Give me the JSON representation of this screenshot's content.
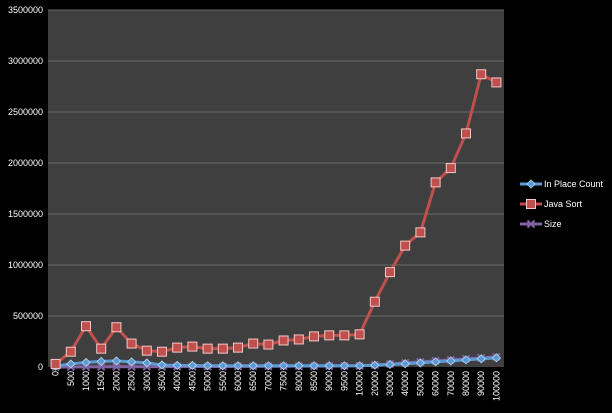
{
  "chart_data": {
    "type": "line",
    "categories": [
      "0",
      "500",
      "1000",
      "1500",
      "2000",
      "2500",
      "3000",
      "3500",
      "4000",
      "4500",
      "5000",
      "5500",
      "6000",
      "6500",
      "7000",
      "7500",
      "8000",
      "8500",
      "9000",
      "9500",
      "10000",
      "20000",
      "30000",
      "40000",
      "50000",
      "60000",
      "70000",
      "80000",
      "90000",
      "100000"
    ],
    "y_ticks": [
      "0",
      "500000",
      "1000000",
      "1500000",
      "2000000",
      "2500000",
      "3000000",
      "3500000"
    ],
    "ylim": [
      0,
      3500000
    ],
    "grid": true,
    "legend_position": "right",
    "series": [
      {
        "name": "In Place Count",
        "color": "#5b9bd5",
        "marker": "diamond",
        "values": [
          8000,
          30000,
          45000,
          55000,
          60000,
          50000,
          40000,
          20000,
          15000,
          15000,
          12000,
          12000,
          12000,
          12000,
          12000,
          12000,
          12000,
          12000,
          12000,
          12000,
          12000,
          18000,
          25000,
          32000,
          40000,
          50000,
          60000,
          70000,
          80000,
          90000
        ]
      },
      {
        "name": "Java Sort",
        "color": "#c0504d",
        "marker": "square",
        "values": [
          30000,
          150000,
          400000,
          180000,
          390000,
          230000,
          160000,
          150000,
          190000,
          200000,
          180000,
          180000,
          190000,
          230000,
          220000,
          260000,
          270000,
          300000,
          310000,
          310000,
          320000,
          640000,
          930000,
          1190000,
          1320000,
          1810000,
          1950000,
          2290000,
          2870000,
          2790000
        ]
      },
      {
        "name": "Size",
        "color": "#8064a2",
        "marker": "x",
        "values": [
          0,
          500,
          1000,
          1500,
          2000,
          2500,
          3000,
          3500,
          4000,
          4500,
          5000,
          5500,
          6000,
          6500,
          7000,
          7500,
          8000,
          8500,
          9000,
          9500,
          10000,
          20000,
          30000,
          40000,
          50000,
          60000,
          70000,
          80000,
          90000,
          100000
        ]
      }
    ],
    "colors": {
      "plot_background": "#3f3f3f",
      "page_background": "#000000",
      "gridline": "#6a6a6a",
      "text": "#ffffff"
    }
  }
}
